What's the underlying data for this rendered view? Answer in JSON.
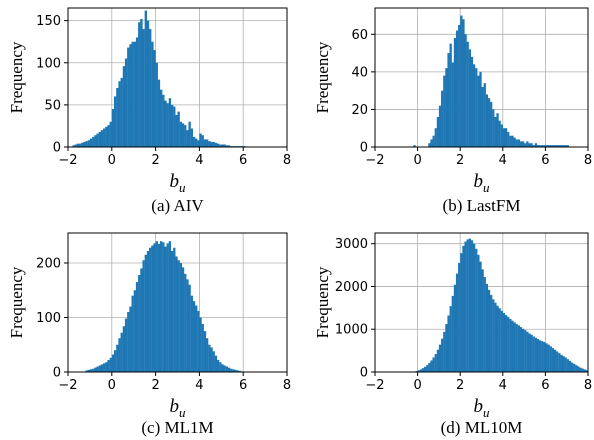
{
  "chart_data": [
    {
      "type": "bar",
      "caption": "(a) AIV",
      "ylabel": "Frequency",
      "xlabel": "b",
      "xlabel_sub": "u",
      "xlim": [
        -2,
        8
      ],
      "ylim": [
        0,
        165
      ],
      "xticks": [
        -2,
        0,
        2,
        4,
        6,
        8
      ],
      "yticks": [
        0,
        50,
        100,
        150
      ],
      "grid": true,
      "color": "#1f77b4",
      "bin_width": 0.1,
      "x": [
        -1.8,
        -1.7,
        -1.6,
        -1.5,
        -1.4,
        -1.3,
        -1.2,
        -1.1,
        -1.0,
        -0.9,
        -0.8,
        -0.7,
        -0.6,
        -0.5,
        -0.4,
        -0.3,
        -0.2,
        -0.1,
        0.0,
        0.1,
        0.2,
        0.3,
        0.4,
        0.5,
        0.6,
        0.7,
        0.8,
        0.9,
        1.0,
        1.1,
        1.2,
        1.3,
        1.4,
        1.5,
        1.6,
        1.7,
        1.8,
        1.9,
        2.0,
        2.1,
        2.2,
        2.3,
        2.4,
        2.5,
        2.6,
        2.7,
        2.8,
        2.9,
        3.0,
        3.1,
        3.2,
        3.3,
        3.4,
        3.5,
        3.6,
        3.7,
        3.8,
        3.9,
        4.0,
        4.1,
        4.2,
        4.3,
        4.4,
        4.5,
        4.6,
        4.7,
        4.8,
        4.9,
        5.0,
        5.1,
        5.2,
        5.3,
        5.4,
        5.5,
        5.6,
        5.7,
        5.8,
        5.9,
        6.0
      ],
      "values": [
        2,
        3,
        4,
        4,
        5,
        6,
        7,
        8,
        10,
        12,
        14,
        16,
        18,
        20,
        22,
        24,
        26,
        30,
        45,
        60,
        70,
        78,
        82,
        96,
        105,
        118,
        122,
        125,
        125,
        130,
        148,
        152,
        140,
        162,
        150,
        140,
        125,
        115,
        100,
        80,
        68,
        62,
        55,
        52,
        58,
        50,
        48,
        38,
        42,
        30,
        28,
        26,
        20,
        30,
        22,
        12,
        10,
        8,
        16,
        14,
        9,
        9,
        7,
        6,
        6,
        5,
        4,
        3,
        3,
        3,
        2,
        2,
        1,
        1,
        1,
        1,
        1,
        1,
        1
      ]
    },
    {
      "type": "bar",
      "caption": "(b) LastFM",
      "ylabel": "Frequency",
      "xlabel": "b",
      "xlabel_sub": "u",
      "xlim": [
        -2,
        8
      ],
      "ylim": [
        0,
        74
      ],
      "xticks": [
        -2,
        0,
        2,
        4,
        6,
        8
      ],
      "yticks": [
        0,
        20,
        40,
        60
      ],
      "grid": true,
      "color": "#1f77b4",
      "bin_width": 0.1,
      "x": [
        -0.2,
        0.5,
        0.6,
        0.7,
        0.8,
        0.9,
        1.0,
        1.1,
        1.2,
        1.3,
        1.4,
        1.5,
        1.6,
        1.7,
        1.8,
        1.9,
        2.0,
        2.1,
        2.2,
        2.3,
        2.4,
        2.5,
        2.6,
        2.7,
        2.8,
        2.9,
        3.0,
        3.1,
        3.2,
        3.3,
        3.4,
        3.5,
        3.6,
        3.7,
        3.8,
        3.9,
        4.0,
        4.1,
        4.2,
        4.3,
        4.4,
        4.5,
        4.6,
        4.7,
        4.8,
        4.9,
        5.0,
        5.1,
        5.2,
        5.3,
        5.4,
        5.5,
        5.6,
        5.7,
        5.8,
        5.9,
        6.0,
        6.1,
        6.2,
        6.3,
        6.4,
        6.5,
        6.6,
        6.7,
        6.8,
        6.9,
        7.0
      ],
      "values": [
        1,
        2,
        4,
        6,
        10,
        16,
        22,
        30,
        38,
        42,
        50,
        55,
        45,
        58,
        62,
        65,
        70,
        68,
        60,
        56,
        52,
        48,
        44,
        42,
        38,
        40,
        32,
        34,
        28,
        26,
        24,
        20,
        16,
        18,
        14,
        12,
        10,
        10,
        8,
        6,
        6,
        5,
        4,
        4,
        3,
        3,
        2,
        3,
        2,
        2,
        1,
        2,
        1,
        1,
        1,
        1,
        1,
        1,
        1,
        1,
        1,
        1,
        1,
        1,
        1,
        1,
        1
      ]
    },
    {
      "type": "bar",
      "caption": "(c) ML1M",
      "ylabel": "Frequency",
      "xlabel": "b",
      "xlabel_sub": "u",
      "xlim": [
        -2,
        8
      ],
      "ylim": [
        0,
        255
      ],
      "xticks": [
        -2,
        0,
        2,
        4,
        6,
        8
      ],
      "yticks": [
        0,
        100,
        200
      ],
      "grid": true,
      "color": "#1f77b4",
      "bin_width": 0.1,
      "x": [
        -1.2,
        -1.1,
        -1.0,
        -0.9,
        -0.8,
        -0.7,
        -0.6,
        -0.5,
        -0.4,
        -0.3,
        -0.2,
        -0.1,
        0.0,
        0.1,
        0.2,
        0.3,
        0.4,
        0.5,
        0.6,
        0.7,
        0.8,
        0.9,
        1.0,
        1.1,
        1.2,
        1.3,
        1.4,
        1.5,
        1.6,
        1.7,
        1.8,
        1.9,
        2.0,
        2.1,
        2.2,
        2.3,
        2.4,
        2.5,
        2.6,
        2.7,
        2.8,
        2.9,
        3.0,
        3.1,
        3.2,
        3.3,
        3.4,
        3.5,
        3.6,
        3.7,
        3.8,
        3.9,
        4.0,
        4.1,
        4.2,
        4.3,
        4.4,
        4.5,
        4.6,
        4.7,
        4.8,
        4.9,
        5.0,
        5.1,
        5.2,
        5.3,
        5.4,
        5.5,
        5.6,
        5.7,
        5.8,
        5.9
      ],
      "values": [
        3,
        4,
        5,
        6,
        8,
        10,
        12,
        14,
        16,
        18,
        22,
        26,
        32,
        40,
        50,
        62,
        72,
        84,
        98,
        110,
        120,
        140,
        150,
        165,
        178,
        190,
        205,
        215,
        222,
        228,
        232,
        236,
        240,
        235,
        240,
        238,
        230,
        236,
        240,
        222,
        228,
        212,
        205,
        200,
        192,
        180,
        170,
        160,
        140,
        130,
        122,
        112,
        100,
        88,
        75,
        62,
        50,
        45,
        38,
        30,
        22,
        18,
        14,
        12,
        10,
        8,
        6,
        5,
        4,
        3,
        2,
        1
      ]
    },
    {
      "type": "bar",
      "caption": "(d) ML10M",
      "ylabel": "Frequency",
      "xlabel": "b",
      "xlabel_sub": "u",
      "xlim": [
        -2,
        8
      ],
      "ylim": [
        0,
        3250
      ],
      "xticks": [
        -2,
        0,
        2,
        4,
        6,
        8
      ],
      "yticks": [
        0,
        1000,
        2000,
        3000
      ],
      "grid": true,
      "color": "#1f77b4",
      "bin_width": 0.1,
      "x": [
        -0.1,
        0.0,
        0.1,
        0.2,
        0.3,
        0.4,
        0.5,
        0.6,
        0.7,
        0.8,
        0.9,
        1.0,
        1.1,
        1.2,
        1.3,
        1.4,
        1.5,
        1.6,
        1.7,
        1.8,
        1.9,
        2.0,
        2.1,
        2.2,
        2.3,
        2.4,
        2.5,
        2.6,
        2.7,
        2.8,
        2.9,
        3.0,
        3.1,
        3.2,
        3.3,
        3.4,
        3.5,
        3.6,
        3.7,
        3.8,
        3.9,
        4.0,
        4.1,
        4.2,
        4.3,
        4.4,
        4.5,
        4.6,
        4.7,
        4.8,
        4.9,
        5.0,
        5.1,
        5.2,
        5.3,
        5.4,
        5.5,
        5.6,
        5.7,
        5.8,
        5.9,
        6.0,
        6.1,
        6.2,
        6.3,
        6.4,
        6.5,
        6.6,
        6.7,
        6.8,
        6.9,
        7.0,
        7.1,
        7.2,
        7.3,
        7.4,
        7.5,
        7.6,
        7.7,
        7.8,
        7.9
      ],
      "values": [
        20,
        40,
        60,
        90,
        120,
        160,
        210,
        270,
        340,
        420,
        520,
        640,
        780,
        940,
        1120,
        1320,
        1540,
        1780,
        2040,
        2300,
        2550,
        2780,
        2950,
        3050,
        3100,
        3120,
        3080,
        3000,
        2880,
        2740,
        2580,
        2400,
        2220,
        2060,
        1920,
        1800,
        1700,
        1620,
        1550,
        1490,
        1430,
        1380,
        1330,
        1290,
        1240,
        1200,
        1160,
        1120,
        1090,
        1050,
        1010,
        980,
        940,
        900,
        870,
        830,
        800,
        770,
        740,
        720,
        700,
        670,
        640,
        600,
        560,
        520,
        480,
        440,
        400,
        370,
        340,
        300,
        260,
        220,
        190,
        160,
        130,
        100,
        80,
        60,
        40
      ]
    }
  ]
}
